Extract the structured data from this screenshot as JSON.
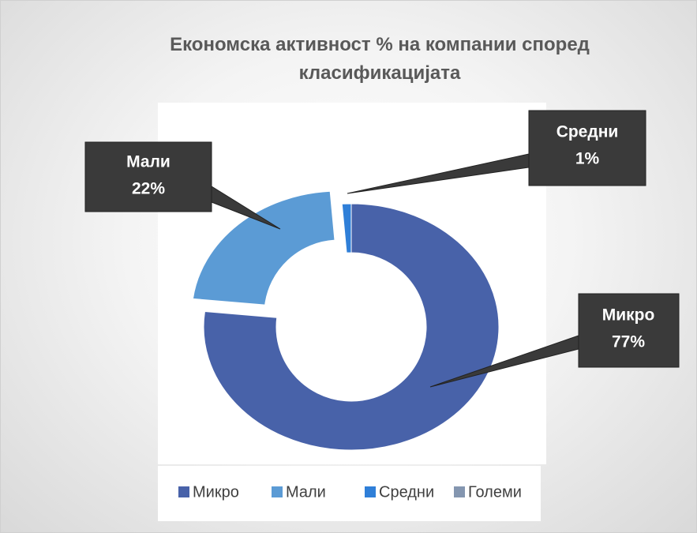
{
  "chart_data": {
    "type": "donut",
    "title": "Економска активност % на компании според класификацијата",
    "categories": [
      "Микро",
      "Мали",
      "Средни",
      "Големи"
    ],
    "values": [
      77,
      22,
      1,
      0
    ],
    "value_labels": [
      "77%",
      "22%",
      "1%",
      null
    ],
    "colors": [
      "#4862a9",
      "#5b9bd5",
      "#2f7fd8",
      "#8496b0"
    ],
    "legend": "bottom"
  }
}
